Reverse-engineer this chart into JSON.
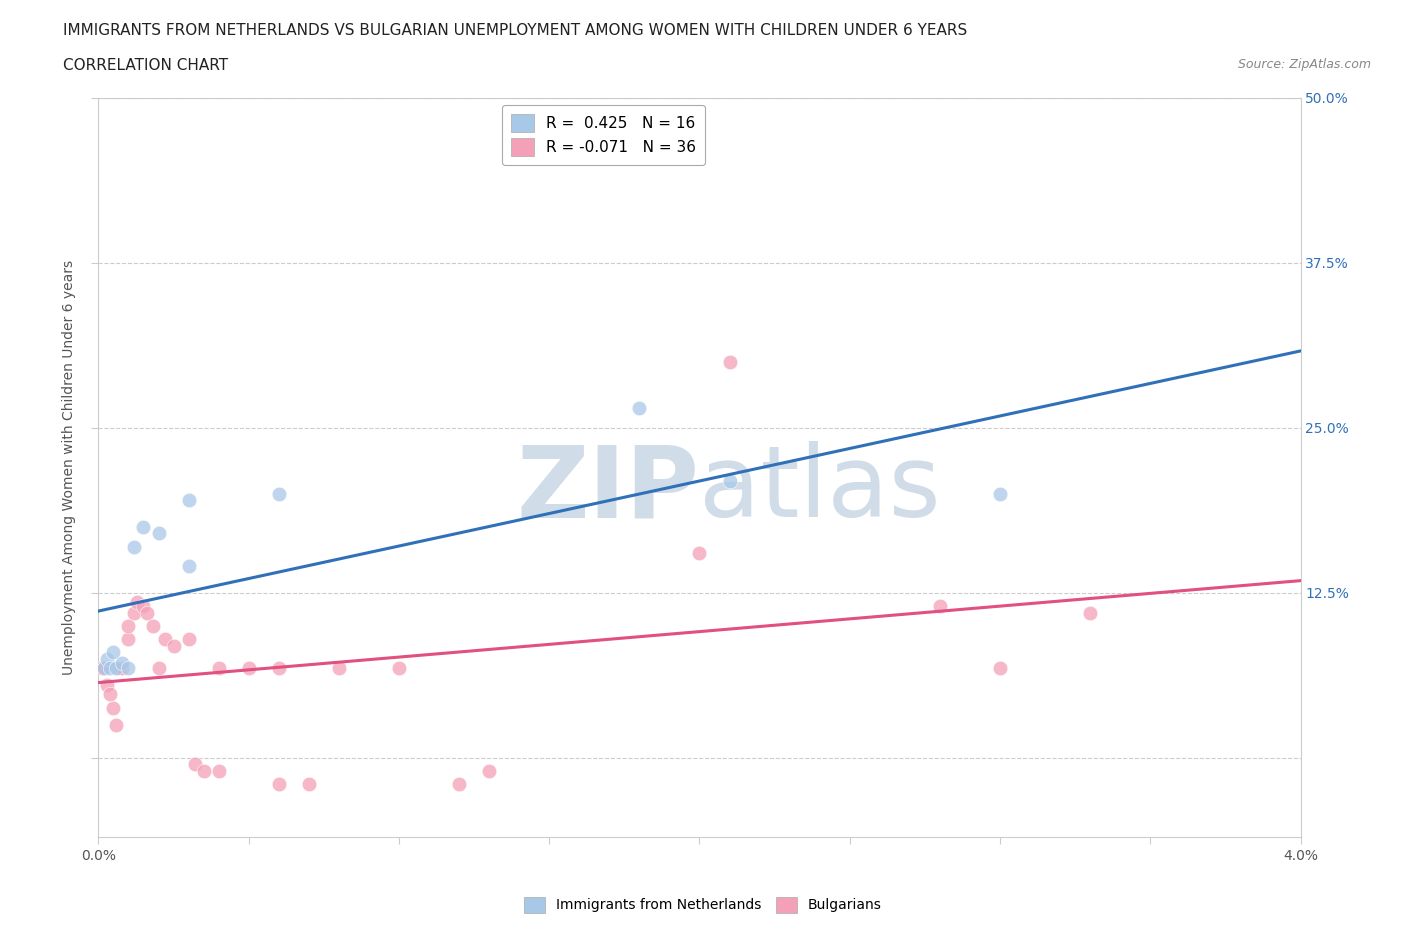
{
  "title_line1": "IMMIGRANTS FROM NETHERLANDS VS BULGARIAN UNEMPLOYMENT AMONG WOMEN WITH CHILDREN UNDER 6 YEARS",
  "title_line2": "CORRELATION CHART",
  "source_text": "Source: ZipAtlas.com",
  "ylabel": "Unemployment Among Women with Children Under 6 years",
  "x_min": 0.0,
  "x_max": 0.04,
  "y_min": -0.06,
  "y_max": 0.5,
  "x_ticks": [
    0.0,
    0.005,
    0.01,
    0.015,
    0.02,
    0.025,
    0.03,
    0.035,
    0.04
  ],
  "y_ticks": [
    0.0,
    0.125,
    0.25,
    0.375,
    0.5
  ],
  "y_tick_labels_right": [
    "",
    "12.5%",
    "25.0%",
    "37.5%",
    "50.0%"
  ],
  "legend_r1": "R =  0.425   N = 16",
  "legend_r2": "R = -0.071   N = 36",
  "blue_color": "#a8c8e8",
  "pink_color": "#f4a0b8",
  "blue_line_color": "#3070b8",
  "pink_line_color": "#e05080",
  "watermark_color": "#d0dce8",
  "netherlands_points": [
    [
      0.0002,
      0.068
    ],
    [
      0.0003,
      0.075
    ],
    [
      0.0004,
      0.068
    ],
    [
      0.0005,
      0.08
    ],
    [
      0.0006,
      0.068
    ],
    [
      0.0008,
      0.072
    ],
    [
      0.001,
      0.068
    ],
    [
      0.0012,
      0.16
    ],
    [
      0.0015,
      0.175
    ],
    [
      0.002,
      0.17
    ],
    [
      0.003,
      0.195
    ],
    [
      0.003,
      0.145
    ],
    [
      0.006,
      0.2
    ],
    [
      0.018,
      0.265
    ],
    [
      0.021,
      0.21
    ],
    [
      0.03,
      0.2
    ]
  ],
  "bulgarians_points": [
    [
      0.0001,
      0.068
    ],
    [
      0.0002,
      0.068
    ],
    [
      0.0003,
      0.055
    ],
    [
      0.0004,
      0.048
    ],
    [
      0.0005,
      0.038
    ],
    [
      0.0006,
      0.025
    ],
    [
      0.0007,
      0.068
    ],
    [
      0.0008,
      0.068
    ],
    [
      0.001,
      0.09
    ],
    [
      0.001,
      0.1
    ],
    [
      0.0012,
      0.11
    ],
    [
      0.0013,
      0.118
    ],
    [
      0.0015,
      0.115
    ],
    [
      0.0016,
      0.11
    ],
    [
      0.0018,
      0.1
    ],
    [
      0.002,
      0.068
    ],
    [
      0.0022,
      0.09
    ],
    [
      0.0025,
      0.085
    ],
    [
      0.003,
      0.09
    ],
    [
      0.0032,
      -0.005
    ],
    [
      0.0035,
      -0.01
    ],
    [
      0.004,
      0.068
    ],
    [
      0.004,
      -0.01
    ],
    [
      0.005,
      0.068
    ],
    [
      0.006,
      -0.02
    ],
    [
      0.006,
      0.068
    ],
    [
      0.007,
      -0.02
    ],
    [
      0.008,
      0.068
    ],
    [
      0.01,
      0.068
    ],
    [
      0.012,
      -0.02
    ],
    [
      0.013,
      -0.01
    ],
    [
      0.02,
      0.155
    ],
    [
      0.021,
      0.3
    ],
    [
      0.028,
      0.115
    ],
    [
      0.03,
      0.068
    ],
    [
      0.033,
      0.11
    ]
  ]
}
